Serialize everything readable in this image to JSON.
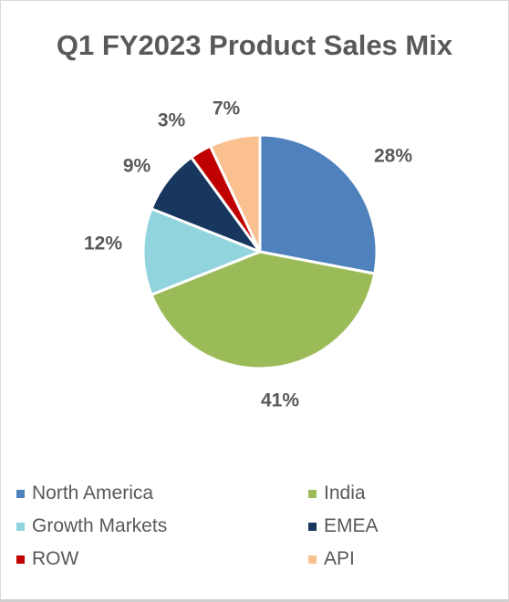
{
  "chart_data": {
    "type": "pie",
    "title": "Q1 FY2023 Product Sales Mix",
    "slices": [
      {
        "name": "North America",
        "value": 28,
        "label": "28%",
        "color": "#4f81bd"
      },
      {
        "name": "India",
        "value": 41,
        "label": "41%",
        "color": "#9bbb59"
      },
      {
        "name": "Growth Markets",
        "value": 12,
        "label": "12%",
        "color": "#92d4de"
      },
      {
        "name": "EMEA",
        "value": 9,
        "label": "9%",
        "color": "#17375e"
      },
      {
        "name": "ROW",
        "value": 3,
        "label": "3%",
        "color": "#c00000"
      },
      {
        "name": "API",
        "value": 7,
        "label": "7%",
        "color": "#fac090"
      }
    ],
    "legend_position": "bottom"
  }
}
